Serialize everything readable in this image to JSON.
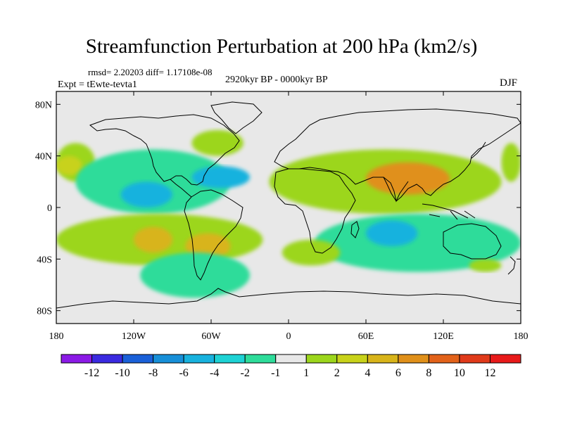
{
  "title": "Streamfunction Perturbation at 200 hPa (km2/s)",
  "stats_line": "rmsd= 2.20203 diff= 1.17108e-08",
  "experiment": "Expt = tEwte-tevta1",
  "period": "2920kyr BP - 0000kyr BP",
  "season": "DJF",
  "chart_data": {
    "type": "heatmap",
    "title": "Streamfunction Perturbation at 200 hPa (km2/s)",
    "x_ticks": [
      "180",
      "120W",
      "60W",
      "0",
      "60E",
      "120E",
      "180"
    ],
    "x_tick_values": [
      -180,
      -120,
      -60,
      0,
      60,
      120,
      180
    ],
    "y_ticks": [
      "80N",
      "40N",
      "0",
      "40S",
      "80S"
    ],
    "y_tick_values": [
      80,
      40,
      0,
      -40,
      -80
    ],
    "xlim": [
      -180,
      180
    ],
    "ylim": [
      -90,
      90
    ],
    "colorbar": {
      "levels": [
        "-12",
        "-10",
        "-8",
        "-6",
        "-4",
        "-2",
        "-1",
        "1",
        "2",
        "4",
        "6",
        "8",
        "10",
        "12"
      ],
      "colors": [
        "#8b1ae6",
        "#3a2ae0",
        "#1a60d8",
        "#178fd8",
        "#18b2de",
        "#1ed2d4",
        "#2edc9a",
        "#e8e8e8",
        "#9cd61c",
        "#c8d21a",
        "#d8b41a",
        "#e0901a",
        "#e2621a",
        "#e03a1a",
        "#e81a1a"
      ]
    },
    "regions": [
      {
        "level": 2,
        "lon": [
          -180,
          -150
        ],
        "lat": [
          20,
          50
        ],
        "note": "north Pacific west"
      },
      {
        "level": 4,
        "lon": [
          -180,
          -160
        ],
        "lat": [
          25,
          40
        ]
      },
      {
        "level": -1,
        "lon": [
          -165,
          -45
        ],
        "lat": [
          -5,
          45
        ],
        "note": "band over N America / Atlantic"
      },
      {
        "level": -4,
        "lon": [
          -130,
          -90
        ],
        "lat": [
          0,
          20
        ]
      },
      {
        "level": -4,
        "lon": [
          -75,
          -30
        ],
        "lat": [
          15,
          32
        ]
      },
      {
        "level": 2,
        "lon": [
          -75,
          -35
        ],
        "lat": [
          40,
          60
        ]
      },
      {
        "level": 2,
        "lon": [
          -180,
          -20
        ],
        "lat": [
          -45,
          -5
        ],
        "note": "south Pacific / S America"
      },
      {
        "level": 6,
        "lon": [
          -120,
          -90
        ],
        "lat": [
          -35,
          -15
        ]
      },
      {
        "level": 6,
        "lon": [
          -80,
          -45
        ],
        "lat": [
          -40,
          -20
        ]
      },
      {
        "level": -1,
        "lon": [
          -115,
          -30
        ],
        "lat": [
          -70,
          -35
        ]
      },
      {
        "level": 2,
        "lon": [
          -15,
          165
        ],
        "lat": [
          -5,
          45
        ],
        "note": "Asia high"
      },
      {
        "level": 8,
        "lon": [
          60,
          125
        ],
        "lat": [
          10,
          35
        ]
      },
      {
        "level": -1,
        "lon": [
          20,
          180
        ],
        "lat": [
          -50,
          -5
        ]
      },
      {
        "level": -4,
        "lon": [
          60,
          100
        ],
        "lat": [
          -30,
          -10
        ]
      },
      {
        "level": 2,
        "lon": [
          -5,
          40
        ],
        "lat": [
          -45,
          -25
        ]
      },
      {
        "level": 2,
        "lon": [
          140,
          165
        ],
        "lat": [
          -50,
          -40
        ]
      },
      {
        "level": 2,
        "lon": [
          165,
          180
        ],
        "lat": [
          20,
          50
        ]
      }
    ]
  }
}
